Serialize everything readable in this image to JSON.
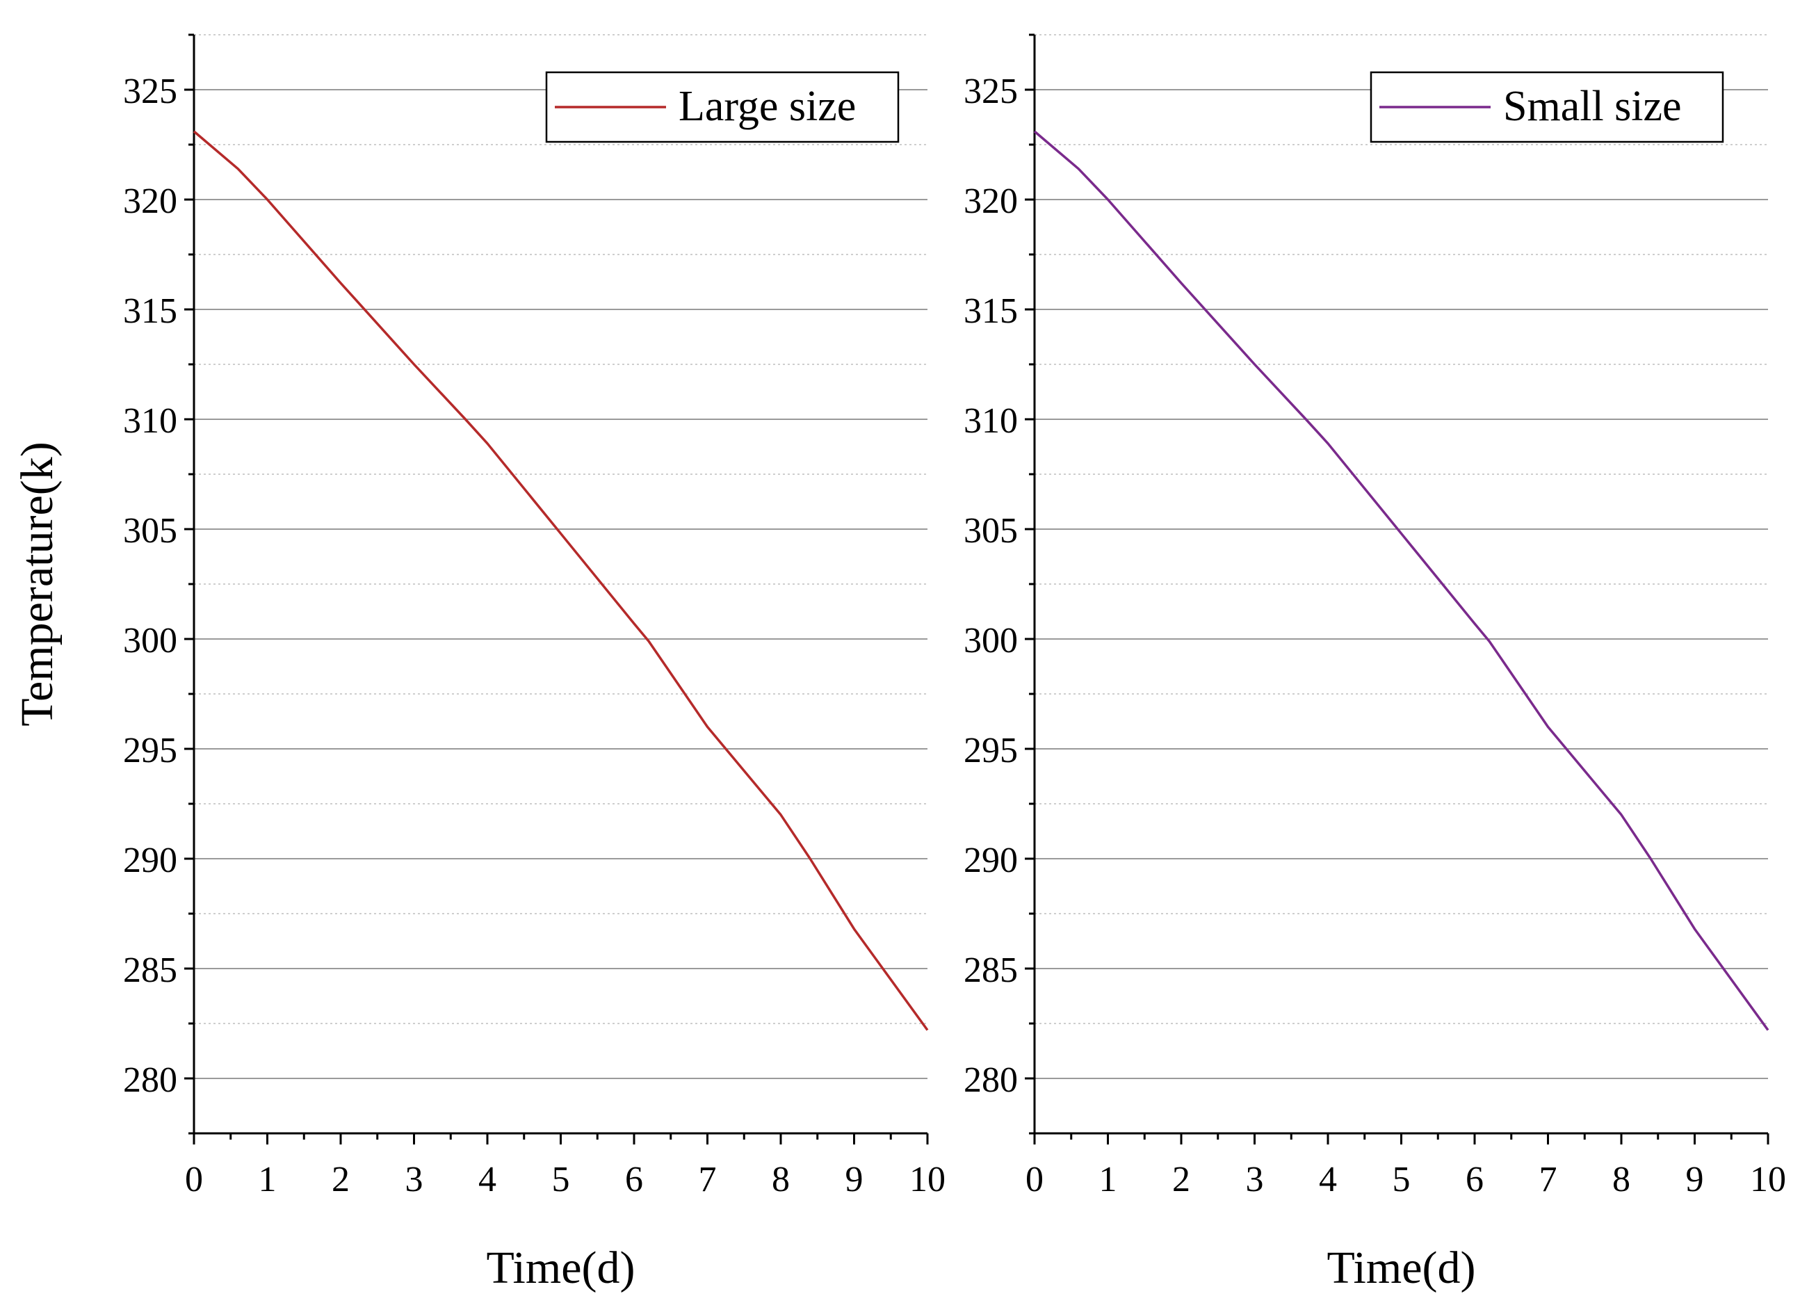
{
  "chart_data": [
    {
      "type": "line",
      "ylabel": "Temperature(k)",
      "xlabel": "Time(d)",
      "xlim": [
        0,
        10
      ],
      "ylim": [
        277.5,
        327.5
      ],
      "x_ticks": [
        0,
        1,
        2,
        3,
        4,
        5,
        6,
        7,
        8,
        9,
        10
      ],
      "y_ticks": [
        280,
        285,
        290,
        295,
        300,
        305,
        310,
        315,
        320,
        325
      ],
      "grid": "horizontal (major solid, minor dotted)",
      "legend_position": "top-right",
      "series": [
        {
          "name": "Large size",
          "color": "#b52a2a",
          "x": [
            0,
            0.6,
            1,
            2,
            3,
            3.7,
            4,
            5,
            6,
            6.2,
            7,
            8,
            8.4,
            9,
            10
          ],
          "y": [
            323.1,
            321.4,
            320.0,
            316.2,
            312.5,
            310.0,
            308.9,
            304.8,
            300.7,
            299.9,
            296.0,
            292.0,
            290.0,
            286.8,
            282.2
          ]
        }
      ]
    },
    {
      "type": "line",
      "ylabel": "",
      "xlabel": "Time(d)",
      "xlim": [
        0,
        10
      ],
      "ylim": [
        277.5,
        327.5
      ],
      "x_ticks": [
        0,
        1,
        2,
        3,
        4,
        5,
        6,
        7,
        8,
        9,
        10
      ],
      "y_ticks": [
        280,
        285,
        290,
        295,
        300,
        305,
        310,
        315,
        320,
        325
      ],
      "grid": "horizontal (major solid, minor dotted)",
      "legend_position": "top-right",
      "series": [
        {
          "name": "Small size",
          "color": "#7a2a8c",
          "x": [
            0,
            0.6,
            1,
            2,
            3,
            3.7,
            4,
            5,
            6,
            6.2,
            7,
            8,
            8.4,
            9,
            10
          ],
          "y": [
            323.1,
            321.4,
            320.0,
            316.2,
            312.5,
            310.0,
            308.9,
            304.8,
            300.7,
            299.9,
            296.0,
            292.0,
            290.0,
            286.8,
            282.2
          ]
        }
      ]
    }
  ]
}
